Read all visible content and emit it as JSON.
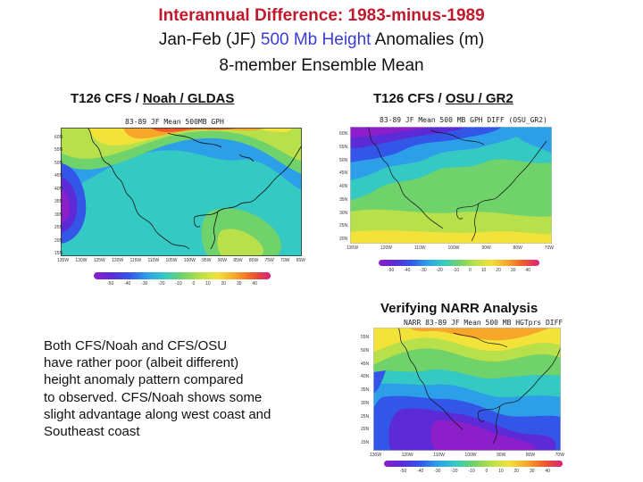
{
  "header": {
    "line1": "Interannual Difference: 1983-minus-1989",
    "line2_pre": "Jan-Feb (JF) ",
    "line2_blue": "500 Mb Height",
    "line2_post": " Anomalies (m)",
    "line3": "8-member Ensemble Mean"
  },
  "panels": {
    "noah": {
      "label_pre": "T126 CFS / ",
      "label_u": "Noah / GLDAS",
      "map_title": "83-89 JF Mean 500MB GPH",
      "y_ticks": [
        "60N",
        "55N",
        "50N",
        "45N",
        "40N",
        "35N",
        "30N",
        "25N",
        "20N",
        "15N"
      ],
      "x_ticks": [
        "135W",
        "130W",
        "125W",
        "120W",
        "115W",
        "110W",
        "105W",
        "100W",
        "95W",
        "90W",
        "85W",
        "80W",
        "75W",
        "70W",
        "65W"
      ],
      "cbar_ticks": [
        "-50",
        "-40",
        "-30",
        "-20",
        "-10",
        "0",
        "10",
        "20",
        "30",
        "40"
      ]
    },
    "osu": {
      "label_pre": "T126 CFS / ",
      "label_u": "OSU / GR2",
      "map_title": "83-89 JF Mean 500 MB GPH DIFF (OSU_GR2)",
      "y_ticks": [
        "60N",
        "55N",
        "50N",
        "45N",
        "40N",
        "35N",
        "30N",
        "25N",
        "20N"
      ],
      "x_ticks": [
        "130W",
        "120W",
        "110W",
        "100W",
        "90W",
        "80W",
        "70W"
      ],
      "cbar_ticks": [
        "-50",
        "-40",
        "-30",
        "-20",
        "-10",
        "0",
        "10",
        "20",
        "30",
        "40"
      ]
    },
    "narr": {
      "label": "Verifying NARR Analysis",
      "map_title": "NARR 83-89 JF Mean 500 MB HGTprs DIFF",
      "y_ticks": [
        "55N",
        "50N",
        "45N",
        "40N",
        "35N",
        "30N",
        "25N",
        "20N",
        "15N"
      ],
      "x_ticks": [
        "130W",
        "120W",
        "110W",
        "100W",
        "90W",
        "80W",
        "70W"
      ],
      "cbar_ticks": [
        "-50",
        "-40",
        "-30",
        "-20",
        "-10",
        "0",
        "10",
        "20",
        "30",
        "40"
      ]
    }
  },
  "summary": {
    "lines": [
      "Both CFS/Noah and CFS/OSU",
      "have rather poor (albeit different)",
      "height anomaly pattern compared",
      "to observed.  CFS/Noah shows some",
      "slight advantage along west coast and",
      "Southeast coast"
    ]
  },
  "colors": {
    "title_red": "#c0192b",
    "title_blue": "#3b3bd6",
    "scale": [
      "#8c1fc9",
      "#5c2ad6",
      "#3355e8",
      "#2d9ee8",
      "#35c9c4",
      "#6fd26a",
      "#b8e04a",
      "#f2e23a",
      "#f7a62c",
      "#ef5a2a",
      "#d8217a"
    ]
  }
}
